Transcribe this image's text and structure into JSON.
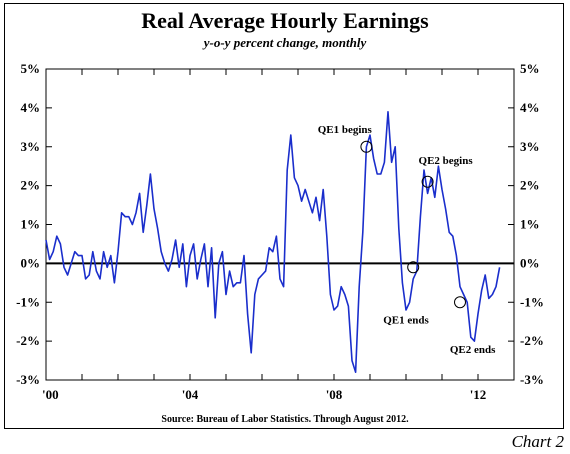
{
  "chart_data": {
    "type": "line",
    "title": "Real Average Hourly Earnings",
    "subtitle": "y-o-y percent change, monthly",
    "source": "Source: Bureau of Labor Statistics. Through August 2012.",
    "tag": "Chart 2",
    "xlim": [
      2000.0,
      2013.0
    ],
    "ylim": [
      -3,
      5
    ],
    "y_ticks": [
      {
        "value": 5,
        "label": "5%"
      },
      {
        "value": 4,
        "label": "4%"
      },
      {
        "value": 3,
        "label": "3%"
      },
      {
        "value": 2,
        "label": "2%"
      },
      {
        "value": 1,
        "label": "1%"
      },
      {
        "value": 0,
        "label": "0%"
      },
      {
        "value": -1,
        "label": "-1%"
      },
      {
        "value": -2,
        "label": "-2%"
      },
      {
        "value": -3,
        "label": "-3%"
      }
    ],
    "x_ticks": [
      {
        "value": 2000,
        "label": "'00"
      },
      {
        "value": 2004,
        "label": "'04"
      },
      {
        "value": 2008,
        "label": "'08"
      },
      {
        "value": 2012,
        "label": "'12"
      }
    ],
    "zero_line": true,
    "grid": false,
    "color": "#1a2ecc",
    "series": [
      {
        "x": [
          2000.0,
          2000.1,
          2000.2,
          2000.3,
          2000.4,
          2000.5,
          2000.6,
          2000.7,
          2000.8,
          2000.9,
          2001.0,
          2001.1,
          2001.2,
          2001.3,
          2001.4,
          2001.5,
          2001.6,
          2001.7,
          2001.8,
          2001.9,
          2002.0,
          2002.1,
          2002.2,
          2002.3,
          2002.4,
          2002.5,
          2002.6,
          2002.7,
          2002.8,
          2002.9,
          2003.0,
          2003.1,
          2003.2,
          2003.3,
          2003.4,
          2003.5,
          2003.6,
          2003.7,
          2003.8,
          2003.9,
          2004.0,
          2004.1,
          2004.2,
          2004.3,
          2004.4,
          2004.5,
          2004.6,
          2004.7,
          2004.8,
          2004.9,
          2005.0,
          2005.1,
          2005.2,
          2005.3,
          2005.4,
          2005.5,
          2005.6,
          2005.7,
          2005.8,
          2005.9,
          2006.0,
          2006.1,
          2006.2,
          2006.3,
          2006.4,
          2006.5,
          2006.6,
          2006.7,
          2006.8,
          2006.9,
          2007.0,
          2007.1,
          2007.2,
          2007.3,
          2007.4,
          2007.5,
          2007.6,
          2007.7,
          2007.8,
          2007.9,
          2008.0,
          2008.1,
          2008.2,
          2008.3,
          2008.4,
          2008.5,
          2008.6,
          2008.7,
          2008.8,
          2008.9,
          2009.0,
          2009.1,
          2009.2,
          2009.3,
          2009.4,
          2009.5,
          2009.6,
          2009.7,
          2009.8,
          2009.9,
          2010.0,
          2010.1,
          2010.2,
          2010.3,
          2010.4,
          2010.5,
          2010.6,
          2010.7,
          2010.8,
          2010.9,
          2011.0,
          2011.1,
          2011.2,
          2011.3,
          2011.4,
          2011.5,
          2011.6,
          2011.7,
          2011.8,
          2011.9,
          2012.0,
          2012.1,
          2012.2,
          2012.3,
          2012.4,
          2012.5,
          2012.6
        ],
        "y": [
          0.6,
          0.1,
          0.3,
          0.7,
          0.5,
          -0.1,
          -0.3,
          0.0,
          0.3,
          0.2,
          0.2,
          -0.4,
          -0.3,
          0.3,
          -0.2,
          -0.4,
          0.3,
          -0.1,
          0.2,
          -0.5,
          0.3,
          1.3,
          1.2,
          1.2,
          1.0,
          1.3,
          1.8,
          0.8,
          1.5,
          2.3,
          1.4,
          0.9,
          0.3,
          0.0,
          -0.2,
          0.1,
          0.6,
          -0.1,
          0.5,
          -0.6,
          0.2,
          0.5,
          -0.4,
          0.1,
          0.5,
          -0.6,
          0.4,
          -1.4,
          0.0,
          0.3,
          -0.8,
          -0.2,
          -0.6,
          -0.5,
          -0.5,
          0.2,
          -1.3,
          -2.3,
          -0.8,
          -0.4,
          -0.3,
          -0.2,
          0.4,
          0.3,
          0.7,
          -0.4,
          -0.6,
          2.4,
          3.3,
          2.2,
          2.0,
          1.6,
          1.9,
          1.6,
          1.3,
          1.7,
          1.1,
          1.9,
          0.7,
          -0.8,
          -1.2,
          -1.1,
          -0.6,
          -0.8,
          -1.1,
          -2.5,
          -2.8,
          -0.6,
          0.8,
          3.0,
          3.3,
          2.7,
          2.3,
          2.3,
          2.6,
          3.9,
          2.6,
          3.0,
          0.9,
          -0.5,
          -1.2,
          -1.0,
          -0.4,
          -0.2,
          1.2,
          2.4,
          1.8,
          2.2,
          1.7,
          2.5,
          1.9,
          1.4,
          0.8,
          0.7,
          0.2,
          -0.6,
          -0.8,
          -1.0,
          -1.9,
          -2.0,
          -1.3,
          -0.7,
          -0.3,
          -0.9,
          -0.8,
          -0.6,
          -0.1
        ]
      }
    ],
    "annotations": [
      {
        "label": "QE1 begins",
        "x": 2008.9,
        "y": 3.0,
        "label_x": 2008.3,
        "label_y": 3.35,
        "anchor": "middle"
      },
      {
        "label": "QE1 ends",
        "x": 2010.2,
        "y": -0.1,
        "label_x": 2010.0,
        "label_y": -1.55,
        "anchor": "middle"
      },
      {
        "label": "QE2 begins",
        "x": 2010.6,
        "y": 2.1,
        "label_x": 2011.1,
        "label_y": 2.55,
        "anchor": "middle"
      },
      {
        "label": "QE2 ends",
        "x": 2011.5,
        "y": -1.0,
        "label_x": 2011.85,
        "label_y": -2.3,
        "anchor": "middle"
      }
    ]
  }
}
